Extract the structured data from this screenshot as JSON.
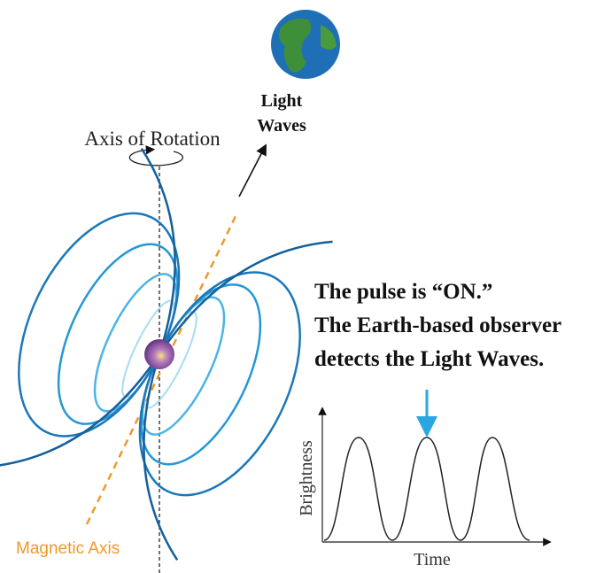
{
  "labels": {
    "light_waves": [
      "Light",
      "Waves"
    ],
    "axis_of_rotation": "Axis of Rotation",
    "magnetic_axis": "Magnetic Axis"
  },
  "caption": {
    "lines": [
      "The pulse is “ON.”",
      "The Earth-based observer",
      "detects the Light Waves."
    ]
  },
  "graph": {
    "y_label": "Brightness",
    "x_label": "Time"
  }
}
